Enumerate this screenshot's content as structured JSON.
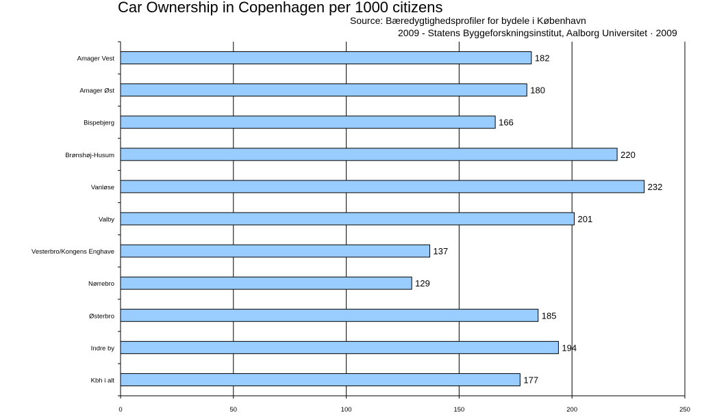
{
  "header": {
    "title": "Car Ownership in Copenhagen per 1000 citizens",
    "source_line1": "Source: Bæredygtighedsprofiler for bydele i København",
    "source_line2": "2009 - Statens Byggeforskningsinstitut, Aalborg Universitet · 2009"
  },
  "chart_data": {
    "type": "bar",
    "orientation": "horizontal",
    "title": "Car Ownership in Copenhagen per 1000 citizens",
    "categories": [
      "Amager Vest",
      "Amager Øst",
      "Bispebjerg",
      "Brønshøj-Husum",
      "Vanløse",
      "Valby",
      "Vesterbro/Kongens Enghave",
      "Nørrebro",
      "Østerbro",
      "Indre by",
      "Kbh i alt"
    ],
    "values": [
      182,
      180,
      166,
      220,
      232,
      201,
      137,
      129,
      185,
      194,
      177
    ],
    "xlim": [
      0,
      250
    ],
    "xticks": [
      0,
      50,
      100,
      150,
      200,
      250
    ],
    "grid": true,
    "legend": "none",
    "bar_color": "#99ccff"
  }
}
